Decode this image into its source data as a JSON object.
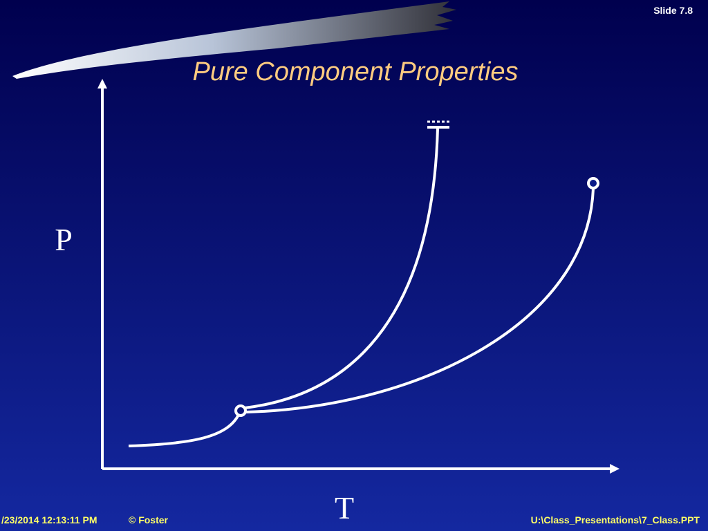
{
  "header": {
    "slide_number": "Slide 7.8",
    "title": "Pure Component Properties"
  },
  "diagram": {
    "y_axis_label": "P",
    "x_axis_label": "T"
  },
  "footer": {
    "timestamp": "/23/2014 12:13:11 PM",
    "author": "© Foster",
    "file_path": "U:\\Class_Presentations\\7_Class.PPT"
  }
}
